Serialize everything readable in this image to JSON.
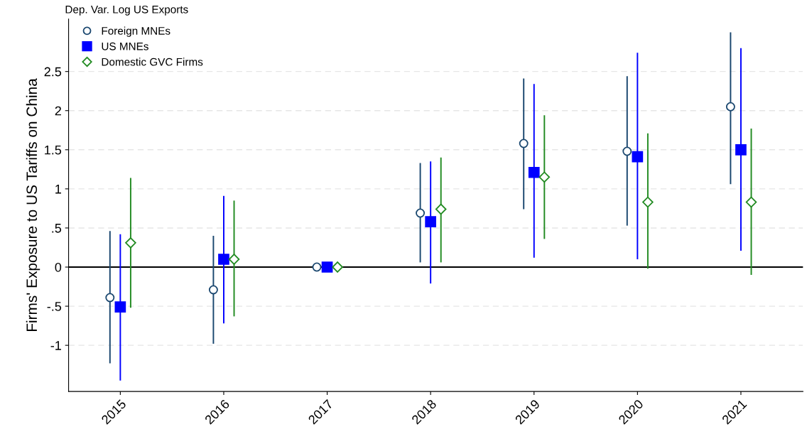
{
  "chart_data": {
    "type": "scatter",
    "title": "Dep. Var. Log US Exports",
    "ylabel": "Firms' Exposure to US Tariffs on China",
    "categories": [
      "2015",
      "2016",
      "2017",
      "2018",
      "2019",
      "2020",
      "2021"
    ],
    "series": [
      {
        "name": "Foreign MNEs",
        "color": "#1a476f",
        "marker": "circle",
        "values": [
          -0.39,
          -0.29,
          0,
          0.69,
          1.58,
          1.48,
          2.05
        ],
        "errors": [
          [
            -1.23,
            0.46
          ],
          [
            -0.98,
            0.4
          ],
          null,
          [
            0.06,
            1.33
          ],
          [
            0.74,
            2.41
          ],
          [
            0.53,
            2.44
          ],
          [
            1.06,
            3.0
          ]
        ]
      },
      {
        "name": "US MNEs",
        "color": "#0000ff",
        "marker": "square",
        "values": [
          -0.51,
          0.1,
          0,
          0.58,
          1.21,
          1.41,
          1.5
        ],
        "errors": [
          [
            -1.45,
            0.42
          ],
          [
            -0.72,
            0.91
          ],
          null,
          [
            -0.21,
            1.35
          ],
          [
            0.12,
            2.34
          ],
          [
            0.1,
            2.74
          ],
          [
            0.21,
            2.8
          ]
        ]
      },
      {
        "name": "Domestic GVC Firms",
        "color": "#228b22",
        "marker": "diamond",
        "values": [
          0.31,
          0.1,
          0,
          0.74,
          1.15,
          0.83,
          0.83
        ],
        "errors": [
          [
            -0.52,
            1.14
          ],
          [
            -0.63,
            0.85
          ],
          null,
          [
            0.06,
            1.4
          ],
          [
            0.36,
            1.94
          ],
          [
            -0.02,
            1.71
          ],
          [
            -0.1,
            1.77
          ]
        ]
      }
    ],
    "ylim": [
      -1.59,
      3.17
    ],
    "yticks": [
      {
        "value": -1,
        "label": "-1"
      },
      {
        "value": -0.5,
        "label": "-.5"
      },
      0,
      {
        "value": 0.5,
        "label": ".5"
      },
      1,
      1.5,
      2,
      2.5
    ],
    "ref_lines": [
      {
        "axis": "y",
        "value": 0,
        "color": "#000000"
      }
    ],
    "grid": "y",
    "legend": "top left"
  }
}
